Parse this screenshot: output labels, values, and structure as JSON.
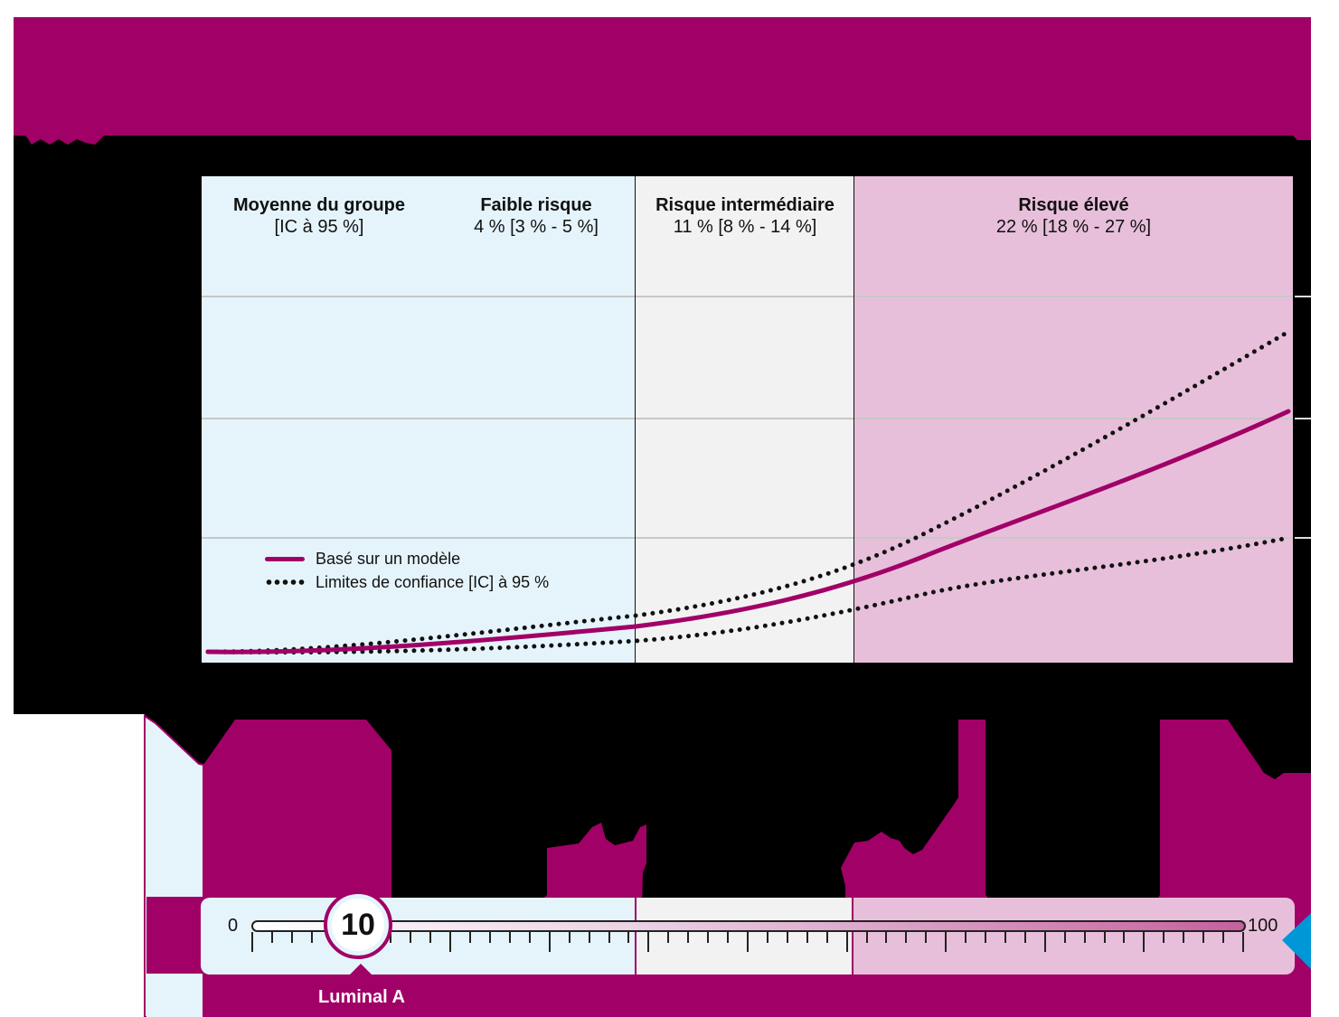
{
  "colors": {
    "brand_magenta": "#a10067",
    "low_risk_bg": "#e5f4fb",
    "intermediate_risk_bg": "#f2f2f2",
    "high_risk_bg": "#e8bfda",
    "mask": "#000000",
    "marker_blue": "#0097d8"
  },
  "header": {
    "note": "Header text is obscured in the screenshot"
  },
  "zones": [
    {
      "title": "Moyenne du groupe",
      "subtitle": "[IC à 95 %]"
    },
    {
      "title": "Faible risque",
      "subtitle": "4 % [3 % - 5 %]"
    },
    {
      "title": "Risque intermédiaire",
      "subtitle": "11 % [8 % - 14 %]"
    },
    {
      "title": "Risque élevé",
      "subtitle": "22 % [18 % - 27 %]"
    }
  ],
  "legend": {
    "model_label": "Basé sur un modèle",
    "ci_label": "Limites de confiance [IC] à 95 %"
  },
  "slider": {
    "min_label": "0",
    "max_label": "100",
    "value": "10",
    "subtype_label": "Luminal A"
  },
  "chart_data": {
    "type": "line",
    "title": "",
    "xlabel": "",
    "ylabel": "",
    "xlim": [
      0,
      100
    ],
    "ylim_gridline_units": [
      0,
      3
    ],
    "grid": true,
    "y_axis_labels_visible": false,
    "legend_position": "inside lower-left",
    "x": [
      0,
      10,
      20,
      30,
      40,
      50,
      60,
      70,
      75,
      80,
      90,
      100
    ],
    "series": [
      {
        "name": "Basé sur un modèle",
        "style": "solid",
        "color": "#a10067",
        "values": [
          0.09,
          0.1,
          0.14,
          0.21,
          0.3,
          0.44,
          0.61,
          0.93,
          1.13,
          1.33,
          1.68,
          2.06
        ]
      },
      {
        "name": "Limites de confiance [IC] à 95 % (supérieure)",
        "style": "dotted",
        "color": "#111111",
        "values": [
          0.09,
          0.11,
          0.18,
          0.28,
          0.4,
          0.56,
          0.76,
          1.22,
          1.5,
          1.78,
          2.23,
          2.71
        ]
      },
      {
        "name": "Limites de confiance [IC] à 95 % (inférieure)",
        "style": "dotted",
        "color": "#111111",
        "values": [
          0.09,
          0.09,
          0.11,
          0.14,
          0.17,
          0.26,
          0.38,
          0.54,
          0.62,
          0.7,
          0.86,
          1.02
        ]
      }
    ],
    "risk_zones": [
      {
        "name": "Faible risque",
        "x_range": [
          0,
          40
        ],
        "estimate": "4 % [3 % - 5 %]"
      },
      {
        "name": "Risque intermédiaire",
        "x_range": [
          40,
          60
        ],
        "estimate": "11 % [8 % - 14 %]"
      },
      {
        "name": "Risque élevé",
        "x_range": [
          60,
          100
        ],
        "estimate": "22 % [18 % - 27 %]"
      }
    ],
    "annotations": [
      "Moyenne du groupe [IC à 95 %]",
      "Score: 10 (Luminal A)"
    ]
  }
}
